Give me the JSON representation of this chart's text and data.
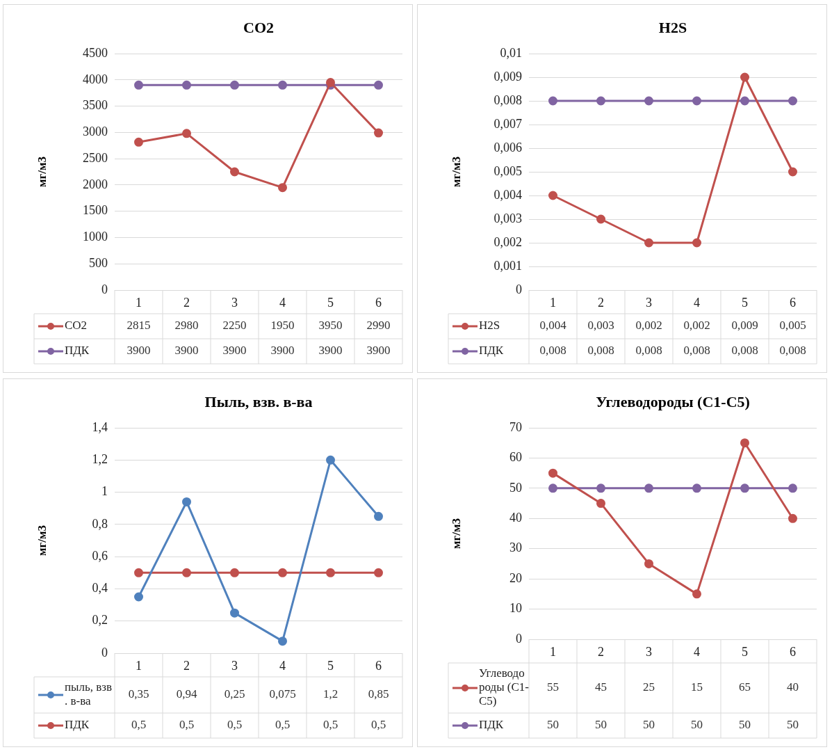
{
  "chart_data": [
    {
      "type": "line",
      "title": "CO2",
      "ylabel": "мг/м3",
      "categories": [
        "1",
        "2",
        "3",
        "4",
        "5",
        "6"
      ],
      "ylim": [
        0,
        4500
      ],
      "yticks": [
        0,
        500,
        1000,
        1500,
        2000,
        2500,
        3000,
        3500,
        4000,
        4500
      ],
      "grid": "y",
      "legend": "bottom",
      "marker": "circle",
      "line_style": "solid",
      "series": [
        {
          "name": "CO2",
          "color": "#c0504d",
          "values": [
            2815,
            2980,
            2250,
            1950,
            3950,
            2990
          ],
          "value_labels": [
            "2815",
            "2980",
            "2250",
            "1950",
            "3950",
            "2990"
          ]
        },
        {
          "name": "ПДК",
          "color": "#8064a2",
          "values": [
            3900,
            3900,
            3900,
            3900,
            3900,
            3900
          ],
          "value_labels": [
            "3900",
            "3900",
            "3900",
            "3900",
            "3900",
            "3900"
          ]
        }
      ]
    },
    {
      "type": "line",
      "title": "H2S",
      "ylabel": "мг/м3",
      "categories": [
        "1",
        "2",
        "3",
        "4",
        "5",
        "6"
      ],
      "ylim": [
        0,
        0.01
      ],
      "yticks": [
        0,
        {
          "value": 0.001,
          "label": "0,001"
        },
        {
          "value": 0.002,
          "label": "0,002"
        },
        {
          "value": 0.003,
          "label": "0,003"
        },
        {
          "value": 0.004,
          "label": "0,004"
        },
        {
          "value": 0.005,
          "label": "0,005"
        },
        {
          "value": 0.006,
          "label": "0,006"
        },
        {
          "value": 0.007,
          "label": "0,007"
        },
        {
          "value": 0.008,
          "label": "0,008"
        },
        {
          "value": 0.009,
          "label": "0,009"
        },
        {
          "value": 0.01,
          "label": "0,01"
        }
      ],
      "grid": "y",
      "legend": "bottom",
      "marker": "circle",
      "line_style": "solid",
      "series": [
        {
          "name": "H2S",
          "color": "#c0504d",
          "values": [
            0.004,
            0.003,
            0.002,
            0.002,
            0.009,
            0.005
          ],
          "value_labels": [
            "0,004",
            "0,003",
            "0,002",
            "0,002",
            "0,009",
            "0,005"
          ]
        },
        {
          "name": "ПДК",
          "color": "#8064a2",
          "values": [
            0.008,
            0.008,
            0.008,
            0.008,
            0.008,
            0.008
          ],
          "value_labels": [
            "0,008",
            "0,008",
            "0,008",
            "0,008",
            "0,008",
            "0,008"
          ]
        }
      ]
    },
    {
      "type": "line",
      "title": "Пыль, взв. в-ва",
      "ylabel": "мг/м3",
      "categories": [
        "1",
        "2",
        "3",
        "4",
        "5",
        "6"
      ],
      "ylim": [
        0,
        1.4
      ],
      "yticks": [
        0,
        {
          "value": 0.2,
          "label": "0,2"
        },
        {
          "value": 0.4,
          "label": "0,4"
        },
        {
          "value": 0.6,
          "label": "0,6"
        },
        {
          "value": 0.8,
          "label": "0,8"
        },
        1,
        {
          "value": 1.2,
          "label": "1,2"
        },
        {
          "value": 1.4,
          "label": "1,4"
        }
      ],
      "grid": "y",
      "legend": "bottom",
      "marker": "circle",
      "line_style": "solid",
      "series": [
        {
          "name": "пыль, взв. в-ва",
          "color": "#4f81bd",
          "values": [
            0.35,
            0.94,
            0.25,
            0.075,
            1.2,
            0.85
          ],
          "value_labels": [
            "0,35",
            "0,94",
            "0,25",
            "0,075",
            "1,2",
            "0,85"
          ]
        },
        {
          "name": "ПДК",
          "color": "#c0504d",
          "values": [
            0.5,
            0.5,
            0.5,
            0.5,
            0.5,
            0.5
          ],
          "value_labels": [
            "0,5",
            "0,5",
            "0,5",
            "0,5",
            "0,5",
            "0,5"
          ]
        }
      ]
    },
    {
      "type": "line",
      "title": "Углеводороды (С1-С5)",
      "ylabel": "мг/м3",
      "categories": [
        "1",
        "2",
        "3",
        "4",
        "5",
        "6"
      ],
      "ylim": [
        0,
        70
      ],
      "yticks": [
        0,
        10,
        20,
        30,
        40,
        50,
        60,
        70
      ],
      "grid": "y",
      "legend": "bottom",
      "marker": "circle",
      "line_style": "solid",
      "series": [
        {
          "name": "Углеводороды (С1-С5)",
          "color": "#c0504d",
          "values": [
            55,
            45,
            25,
            15,
            65,
            40
          ],
          "value_labels": [
            "55",
            "45",
            "25",
            "15",
            "65",
            "40"
          ]
        },
        {
          "name": "ПДК",
          "color": "#8064a2",
          "values": [
            50,
            50,
            50,
            50,
            50,
            50
          ],
          "value_labels": [
            "50",
            "50",
            "50",
            "50",
            "50",
            "50"
          ]
        }
      ]
    }
  ]
}
